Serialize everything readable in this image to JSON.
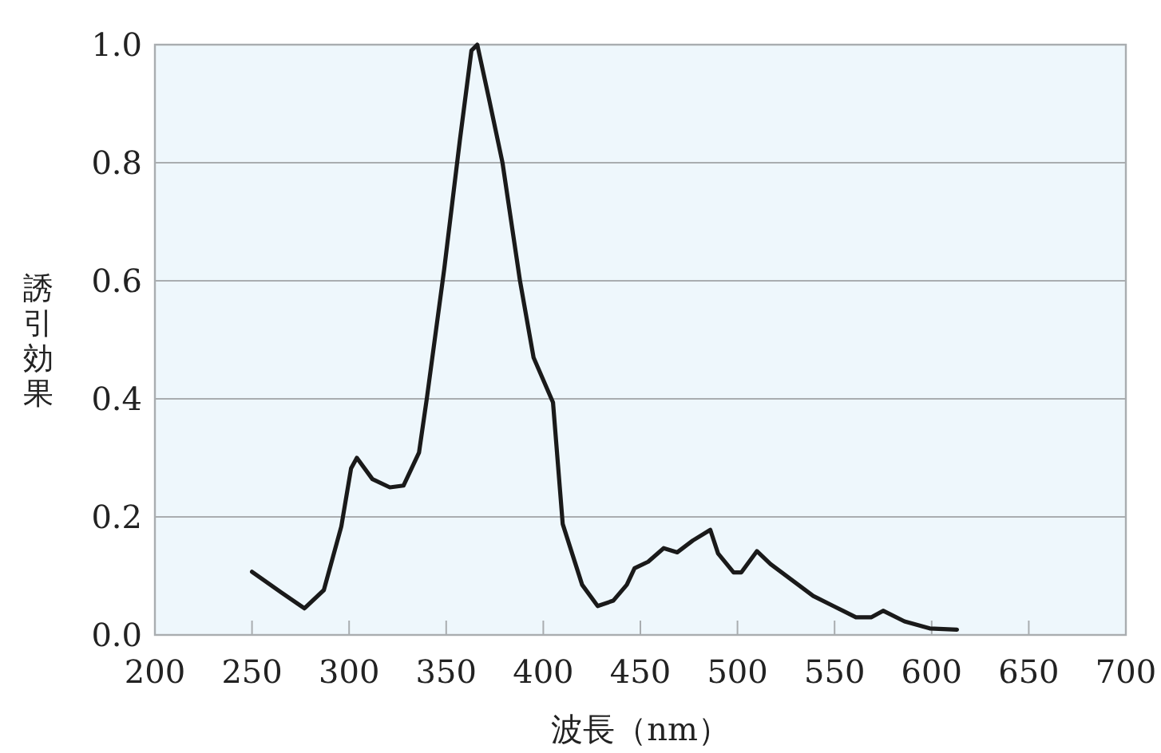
{
  "chart_data": {
    "type": "line",
    "xlabel": "波長（nm）",
    "ylabel": "誘引効果",
    "xlim": [
      200,
      700
    ],
    "xticks": [
      200,
      250,
      300,
      350,
      400,
      450,
      500,
      550,
      600,
      650,
      700
    ],
    "ylim": [
      0,
      1
    ],
    "yticks": [
      {
        "value": 0,
        "label": "0.0"
      },
      {
        "value": 0.2,
        "label": "0.2"
      },
      {
        "value": 0.4,
        "label": "0.4"
      },
      {
        "value": 0.6,
        "label": "0.6"
      },
      {
        "value": 0.8,
        "label": "0.8"
      },
      {
        "value": 1,
        "label": "1.0"
      }
    ],
    "grid": "y",
    "marker": "none",
    "line_style": "solid",
    "series": [
      {
        "color": "#1a1a1a",
        "x": [
          250,
          265,
          277,
          287,
          296,
          301,
          304,
          312,
          321,
          328,
          336,
          340,
          349,
          357,
          363,
          366,
          372,
          379,
          388,
          395,
          405,
          410,
          420,
          428,
          436,
          443,
          447,
          454,
          462,
          469,
          477,
          486,
          490,
          498,
          502,
          510,
          517,
          528,
          539,
          550,
          561,
          569,
          575,
          586,
          599,
          613
        ],
        "values": [
          0.107,
          0.072,
          0.045,
          0.076,
          0.184,
          0.282,
          0.3,
          0.264,
          0.25,
          0.253,
          0.309,
          0.4,
          0.62,
          0.837,
          0.99,
          1.0,
          0.909,
          0.8,
          0.6,
          0.47,
          0.394,
          0.188,
          0.085,
          0.049,
          0.058,
          0.085,
          0.113,
          0.124,
          0.147,
          0.14,
          0.16,
          0.178,
          0.138,
          0.106,
          0.106,
          0.142,
          0.12,
          0.093,
          0.066,
          0.048,
          0.03,
          0.03,
          0.041,
          0.023,
          0.011,
          0.009
        ]
      }
    ]
  }
}
